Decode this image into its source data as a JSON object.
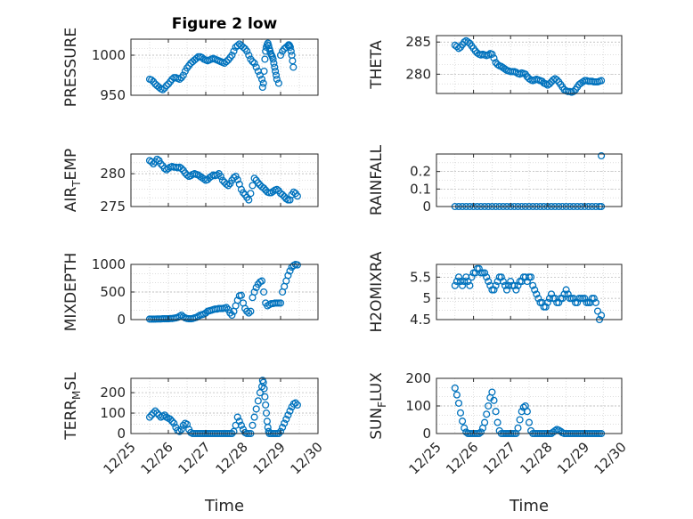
{
  "figure_title": "Figure 2 low",
  "x_axis_label": "Time",
  "x_tick_labels": [
    "12/25",
    "12/26",
    "12/27",
    "12/28",
    "12/29",
    "12/30"
  ],
  "colors": {
    "marker": "#0072BD",
    "axis": "#262626",
    "grid": "#c8c8c8",
    "background": "#ffffff"
  },
  "chart_data": [
    {
      "type": "scatter",
      "ylabel": "PRESSURE",
      "ylim": [
        950,
        1020
      ],
      "yticks": [
        950,
        1000
      ],
      "xlim": [
        0,
        5
      ],
      "grid": true,
      "x": [
        0.5,
        0.55,
        0.6,
        0.65,
        0.7,
        0.75,
        0.8,
        0.85,
        0.9,
        0.95,
        1.0,
        1.05,
        1.1,
        1.15,
        1.2,
        1.25,
        1.3,
        1.35,
        1.4,
        1.45,
        1.5,
        1.55,
        1.6,
        1.65,
        1.7,
        1.75,
        1.8,
        1.85,
        1.9,
        1.95,
        2.0,
        2.05,
        2.1,
        2.15,
        2.2,
        2.25,
        2.3,
        2.35,
        2.4,
        2.45,
        2.5,
        2.55,
        2.6,
        2.65,
        2.7,
        2.75,
        2.8,
        2.85,
        2.9,
        2.95,
        3.0,
        3.05,
        3.1,
        3.15,
        3.2,
        3.25,
        3.3,
        3.35,
        3.4,
        3.45,
        3.5,
        3.52,
        3.54,
        3.56,
        3.58,
        3.6,
        3.62,
        3.64,
        3.66,
        3.68,
        3.7,
        3.72,
        3.74,
        3.76,
        3.78,
        3.8,
        3.82,
        3.84,
        3.86,
        3.88,
        3.9,
        3.95,
        4.0,
        4.05,
        4.1,
        4.15,
        4.2,
        4.22,
        4.24,
        4.26,
        4.28,
        4.3,
        4.32,
        4.34
      ],
      "y": [
        970,
        969,
        967,
        964,
        962,
        960,
        958,
        957,
        959,
        962,
        964,
        967,
        970,
        972,
        972,
        971,
        970,
        972,
        975,
        980,
        984,
        987,
        990,
        992,
        994,
        996,
        998,
        998,
        997,
        995,
        994,
        993,
        994,
        995,
        996,
        995,
        994,
        993,
        992,
        991,
        990,
        992,
        994,
        997,
        1000,
        1005,
        1010,
        1012,
        1014,
        1012,
        1010,
        1008,
        1005,
        1000,
        995,
        992,
        990,
        985,
        980,
        975,
        970,
        960,
        965,
        980,
        995,
        1005,
        1010,
        1013,
        1015,
        1012,
        1008,
        1005,
        1002,
        1000,
        998,
        995,
        990,
        985,
        980,
        975,
        970,
        965,
        1000,
        1005,
        1008,
        1010,
        1012,
        1013,
        1012,
        1010,
        1005,
        1000,
        993,
        985
      ]
    },
    {
      "type": "scatter",
      "ylabel": "THETA",
      "ylim": [
        277,
        286
      ],
      "yticks": [
        280,
        285
      ],
      "xlim": [
        0,
        5
      ],
      "grid": true,
      "x": [
        0.5,
        0.55,
        0.6,
        0.65,
        0.7,
        0.75,
        0.8,
        0.85,
        0.9,
        0.95,
        1.0,
        1.05,
        1.1,
        1.15,
        1.2,
        1.25,
        1.3,
        1.35,
        1.4,
        1.45,
        1.5,
        1.55,
        1.6,
        1.65,
        1.7,
        1.75,
        1.8,
        1.85,
        1.9,
        1.95,
        2.0,
        2.05,
        2.1,
        2.15,
        2.2,
        2.25,
        2.3,
        2.35,
        2.4,
        2.45,
        2.5,
        2.55,
        2.6,
        2.65,
        2.7,
        2.75,
        2.8,
        2.85,
        2.9,
        2.95,
        3.0,
        3.05,
        3.1,
        3.15,
        3.2,
        3.25,
        3.3,
        3.35,
        3.4,
        3.45,
        3.5,
        3.55,
        3.6,
        3.65,
        3.7,
        3.75,
        3.8,
        3.85,
        3.9,
        3.95,
        4.0,
        4.05,
        4.1,
        4.15,
        4.2,
        4.25,
        4.3,
        4.35,
        4.4,
        4.45
      ],
      "y": [
        284.5,
        284.3,
        284.0,
        284.2,
        284.6,
        285.0,
        285.2,
        285.0,
        284.8,
        284.4,
        284.0,
        283.6,
        283.3,
        283.1,
        283.0,
        283.1,
        283.0,
        282.9,
        283.0,
        283.2,
        283.1,
        282.5,
        281.8,
        281.5,
        281.3,
        281.2,
        281.0,
        280.8,
        280.6,
        280.5,
        280.4,
        280.4,
        280.4,
        280.3,
        280.1,
        280.0,
        280.2,
        280.1,
        280.0,
        279.6,
        279.3,
        279.1,
        279.0,
        279.1,
        279.2,
        279.1,
        279.0,
        278.9,
        278.6,
        278.5,
        278.3,
        278.5,
        278.8,
        279.1,
        279.3,
        279.1,
        278.8,
        278.4,
        278.0,
        277.6,
        277.4,
        277.3,
        277.3,
        277.2,
        277.3,
        277.6,
        278.0,
        278.4,
        278.6,
        278.8,
        279.0,
        279.0,
        278.9,
        278.9,
        278.9,
        278.8,
        278.8,
        278.8,
        278.9,
        279.0
      ]
    },
    {
      "type": "scatter",
      "ylabel": "AIR_TEMP",
      "ylim": [
        275,
        283
      ],
      "yticks": [
        275,
        280
      ],
      "xlim": [
        0,
        5
      ],
      "grid": true,
      "x": [
        0.5,
        0.55,
        0.6,
        0.65,
        0.7,
        0.75,
        0.8,
        0.85,
        0.9,
        0.95,
        1.0,
        1.05,
        1.1,
        1.15,
        1.2,
        1.25,
        1.3,
        1.35,
        1.4,
        1.45,
        1.5,
        1.55,
        1.6,
        1.65,
        1.7,
        1.75,
        1.8,
        1.85,
        1.9,
        1.95,
        2.0,
        2.05,
        2.1,
        2.15,
        2.2,
        2.25,
        2.3,
        2.35,
        2.4,
        2.45,
        2.5,
        2.55,
        2.6,
        2.65,
        2.7,
        2.75,
        2.8,
        2.85,
        2.9,
        2.95,
        3.0,
        3.05,
        3.1,
        3.15,
        3.2,
        3.25,
        3.3,
        3.35,
        3.4,
        3.45,
        3.5,
        3.55,
        3.6,
        3.65,
        3.7,
        3.75,
        3.8,
        3.85,
        3.9,
        3.95,
        4.0,
        4.05,
        4.1,
        4.15,
        4.2,
        4.25,
        4.3,
        4.35,
        4.4,
        4.45
      ],
      "y": [
        282.0,
        281.8,
        281.5,
        281.8,
        282.2,
        282.0,
        281.5,
        281.2,
        280.8,
        280.6,
        280.8,
        281.0,
        281.1,
        281.0,
        281.0,
        280.9,
        281.0,
        280.8,
        280.5,
        280.1,
        279.8,
        279.6,
        279.7,
        279.9,
        280.0,
        279.9,
        279.8,
        279.6,
        279.4,
        279.2,
        279.0,
        279.1,
        279.4,
        279.6,
        279.8,
        279.7,
        279.8,
        280.0,
        279.6,
        279.0,
        278.7,
        278.4,
        278.2,
        278.5,
        279.0,
        279.4,
        279.6,
        279.1,
        278.4,
        277.6,
        277.1,
        276.8,
        276.4,
        276.0,
        277.0,
        278.2,
        279.3,
        279.0,
        278.6,
        278.3,
        278.0,
        277.8,
        277.5,
        277.2,
        277.1,
        277.1,
        277.3,
        277.5,
        277.6,
        277.4,
        277.0,
        276.8,
        276.5,
        276.2,
        276.0,
        276.0,
        276.8,
        277.2,
        277.0,
        276.6
      ]
    },
    {
      "type": "scatter",
      "ylabel": "RAINFALL",
      "ylim": [
        0,
        0.3
      ],
      "yticks": [
        0,
        0.1,
        0.2
      ],
      "xlim": [
        0,
        5
      ],
      "grid": true,
      "x": [
        0.5,
        0.6,
        0.7,
        0.8,
        0.9,
        1.0,
        1.1,
        1.2,
        1.3,
        1.4,
        1.5,
        1.6,
        1.7,
        1.8,
        1.9,
        2.0,
        2.1,
        2.2,
        2.3,
        2.4,
        2.5,
        2.6,
        2.7,
        2.8,
        2.9,
        3.0,
        3.1,
        3.2,
        3.3,
        3.4,
        3.5,
        3.6,
        3.7,
        3.8,
        3.9,
        4.0,
        4.1,
        4.2,
        4.3,
        4.4,
        4.45,
        4.45
      ],
      "y": [
        0,
        0,
        0,
        0,
        0,
        0,
        0,
        0,
        0,
        0,
        0,
        0,
        0,
        0,
        0,
        0,
        0,
        0,
        0,
        0,
        0,
        0,
        0,
        0,
        0,
        0,
        0,
        0,
        0,
        0,
        0,
        0,
        0,
        0,
        0,
        0,
        0,
        0,
        0,
        0,
        0,
        0.29
      ]
    },
    {
      "type": "scatter",
      "ylabel": "MIXDEPTH",
      "ylim": [
        0,
        1000
      ],
      "yticks": [
        0,
        500,
        1000
      ],
      "xlim": [
        0,
        5
      ],
      "grid": true,
      "x": [
        0.5,
        0.55,
        0.6,
        0.65,
        0.7,
        0.75,
        0.8,
        0.85,
        0.9,
        0.95,
        1.0,
        1.05,
        1.1,
        1.15,
        1.2,
        1.25,
        1.3,
        1.35,
        1.4,
        1.45,
        1.5,
        1.55,
        1.6,
        1.65,
        1.7,
        1.75,
        1.8,
        1.85,
        1.9,
        1.95,
        2.0,
        2.05,
        2.1,
        2.15,
        2.2,
        2.25,
        2.3,
        2.35,
        2.4,
        2.45,
        2.5,
        2.55,
        2.6,
        2.65,
        2.7,
        2.75,
        2.8,
        2.85,
        2.9,
        2.95,
        3.0,
        3.05,
        3.1,
        3.15,
        3.2,
        3.25,
        3.3,
        3.35,
        3.4,
        3.45,
        3.5,
        3.55,
        3.6,
        3.65,
        3.7,
        3.75,
        3.8,
        3.85,
        3.9,
        3.95,
        4.0,
        4.05,
        4.1,
        4.15,
        4.2,
        4.25,
        4.3,
        4.35,
        4.4,
        4.45
      ],
      "y": [
        10,
        10,
        10,
        10,
        12,
        12,
        12,
        15,
        15,
        15,
        15,
        20,
        20,
        25,
        30,
        40,
        60,
        80,
        50,
        30,
        20,
        15,
        15,
        20,
        30,
        40,
        60,
        80,
        90,
        100,
        120,
        150,
        160,
        170,
        180,
        190,
        190,
        200,
        200,
        200,
        210,
        220,
        180,
        120,
        80,
        150,
        250,
        350,
        430,
        440,
        300,
        200,
        150,
        120,
        150,
        400,
        500,
        580,
        640,
        680,
        700,
        500,
        300,
        250,
        270,
        290,
        290,
        300,
        300,
        300,
        300,
        500,
        600,
        700,
        800,
        880,
        950,
        980,
        1000,
        990
      ]
    },
    {
      "type": "scatter",
      "ylabel": "H2OMIXRA",
      "ylim": [
        4.5,
        5.8
      ],
      "yticks": [
        4.5,
        5,
        5.5
      ],
      "xlim": [
        0,
        5
      ],
      "grid": true,
      "x": [
        0.5,
        0.55,
        0.6,
        0.65,
        0.7,
        0.75,
        0.8,
        0.85,
        0.9,
        0.95,
        1.0,
        1.05,
        1.1,
        1.15,
        1.2,
        1.25,
        1.3,
        1.35,
        1.4,
        1.45,
        1.5,
        1.55,
        1.6,
        1.65,
        1.7,
        1.75,
        1.8,
        1.85,
        1.9,
        1.95,
        2.0,
        2.05,
        2.1,
        2.15,
        2.2,
        2.25,
        2.3,
        2.35,
        2.4,
        2.45,
        2.5,
        2.55,
        2.6,
        2.65,
        2.7,
        2.75,
        2.8,
        2.85,
        2.9,
        2.95,
        3.0,
        3.05,
        3.1,
        3.15,
        3.2,
        3.25,
        3.3,
        3.35,
        3.4,
        3.45,
        3.5,
        3.55,
        3.6,
        3.65,
        3.7,
        3.75,
        3.8,
        3.85,
        3.9,
        3.95,
        4.0,
        4.05,
        4.1,
        4.15,
        4.2,
        4.25,
        4.3,
        4.35,
        4.4,
        4.45
      ],
      "y": [
        5.3,
        5.4,
        5.5,
        5.4,
        5.3,
        5.4,
        5.5,
        5.4,
        5.3,
        5.5,
        5.6,
        5.6,
        5.7,
        5.7,
        5.6,
        5.6,
        5.6,
        5.5,
        5.4,
        5.3,
        5.2,
        5.2,
        5.3,
        5.4,
        5.5,
        5.5,
        5.4,
        5.3,
        5.2,
        5.3,
        5.4,
        5.3,
        5.3,
        5.2,
        5.3,
        5.4,
        5.4,
        5.5,
        5.5,
        5.4,
        5.5,
        5.5,
        5.3,
        5.2,
        5.1,
        5.0,
        4.9,
        4.9,
        4.8,
        4.8,
        4.9,
        5.0,
        5.1,
        5.0,
        5.0,
        4.9,
        4.9,
        5.0,
        5.0,
        5.1,
        5.2,
        5.1,
        5.0,
        5.0,
        5.0,
        4.9,
        4.9,
        5.0,
        5.0,
        5.0,
        5.0,
        4.9,
        4.9,
        4.9,
        5.0,
        5.0,
        4.9,
        4.7,
        4.5,
        4.6
      ]
    },
    {
      "type": "scatter",
      "ylabel": "TERR_MSL",
      "ylim": [
        0,
        270
      ],
      "yticks": [
        0,
        100,
        200
      ],
      "xlim": [
        0,
        5
      ],
      "grid": true,
      "x": [
        0.5,
        0.55,
        0.6,
        0.65,
        0.7,
        0.75,
        0.8,
        0.85,
        0.9,
        0.95,
        1.0,
        1.05,
        1.1,
        1.15,
        1.2,
        1.25,
        1.3,
        1.35,
        1.4,
        1.45,
        1.5,
        1.55,
        1.6,
        1.65,
        1.7,
        1.75,
        1.8,
        1.85,
        1.9,
        1.95,
        2.0,
        2.05,
        2.1,
        2.15,
        2.2,
        2.25,
        2.3,
        2.35,
        2.4,
        2.45,
        2.5,
        2.55,
        2.6,
        2.65,
        2.7,
        2.75,
        2.8,
        2.85,
        2.9,
        2.95,
        3.0,
        3.05,
        3.1,
        3.15,
        3.2,
        3.25,
        3.3,
        3.35,
        3.4,
        3.45,
        3.5,
        3.52,
        3.54,
        3.56,
        3.58,
        3.6,
        3.62,
        3.64,
        3.66,
        3.68,
        3.7,
        3.75,
        3.8,
        3.85,
        3.9,
        3.95,
        4.0,
        4.05,
        4.1,
        4.15,
        4.2,
        4.25,
        4.3,
        4.35,
        4.4,
        4.45
      ],
      "y": [
        80,
        90,
        100,
        110,
        100,
        90,
        80,
        85,
        90,
        80,
        75,
        70,
        60,
        50,
        30,
        15,
        10,
        20,
        40,
        50,
        45,
        20,
        5,
        0,
        0,
        0,
        0,
        0,
        0,
        0,
        0,
        0,
        0,
        0,
        0,
        0,
        0,
        0,
        0,
        0,
        0,
        0,
        0,
        0,
        0,
        10,
        40,
        80,
        60,
        40,
        20,
        5,
        0,
        0,
        0,
        40,
        80,
        120,
        160,
        200,
        230,
        260,
        250,
        220,
        180,
        140,
        100,
        60,
        30,
        10,
        0,
        0,
        0,
        0,
        0,
        0,
        10,
        30,
        50,
        70,
        90,
        110,
        130,
        145,
        150,
        140
      ]
    },
    {
      "type": "scatter",
      "ylabel": "SUN_FLUX",
      "ylim": [
        0,
        200
      ],
      "yticks": [
        0,
        100,
        200
      ],
      "xlim": [
        0,
        5
      ],
      "grid": true,
      "x": [
        0.5,
        0.55,
        0.6,
        0.65,
        0.7,
        0.75,
        0.8,
        0.85,
        0.9,
        0.95,
        1.0,
        1.05,
        1.1,
        1.15,
        1.2,
        1.25,
        1.3,
        1.35,
        1.4,
        1.45,
        1.5,
        1.55,
        1.6,
        1.65,
        1.7,
        1.75,
        1.8,
        1.85,
        1.9,
        1.95,
        2.0,
        2.05,
        2.1,
        2.15,
        2.2,
        2.25,
        2.3,
        2.35,
        2.4,
        2.45,
        2.5,
        2.55,
        2.6,
        2.65,
        2.7,
        2.75,
        2.8,
        2.85,
        2.9,
        2.95,
        3.0,
        3.05,
        3.1,
        3.15,
        3.2,
        3.25,
        3.3,
        3.35,
        3.4,
        3.45,
        3.5,
        3.55,
        3.6,
        3.65,
        3.7,
        3.75,
        3.8,
        3.85,
        3.9,
        3.95,
        4.0,
        4.05,
        4.1,
        4.15,
        4.2,
        4.25,
        4.3,
        4.35,
        4.4,
        4.45
      ],
      "y": [
        165,
        140,
        110,
        75,
        45,
        20,
        5,
        0,
        0,
        0,
        0,
        0,
        0,
        0,
        5,
        20,
        40,
        70,
        100,
        130,
        150,
        120,
        80,
        40,
        10,
        0,
        0,
        0,
        0,
        0,
        0,
        0,
        0,
        0,
        20,
        50,
        80,
        95,
        100,
        80,
        40,
        10,
        0,
        0,
        0,
        0,
        0,
        0,
        0,
        0,
        0,
        0,
        0,
        5,
        10,
        15,
        12,
        8,
        3,
        0,
        0,
        0,
        0,
        0,
        0,
        0,
        0,
        0,
        0,
        0,
        0,
        0,
        0,
        0,
        0,
        0,
        0,
        0,
        0,
        0
      ]
    }
  ]
}
